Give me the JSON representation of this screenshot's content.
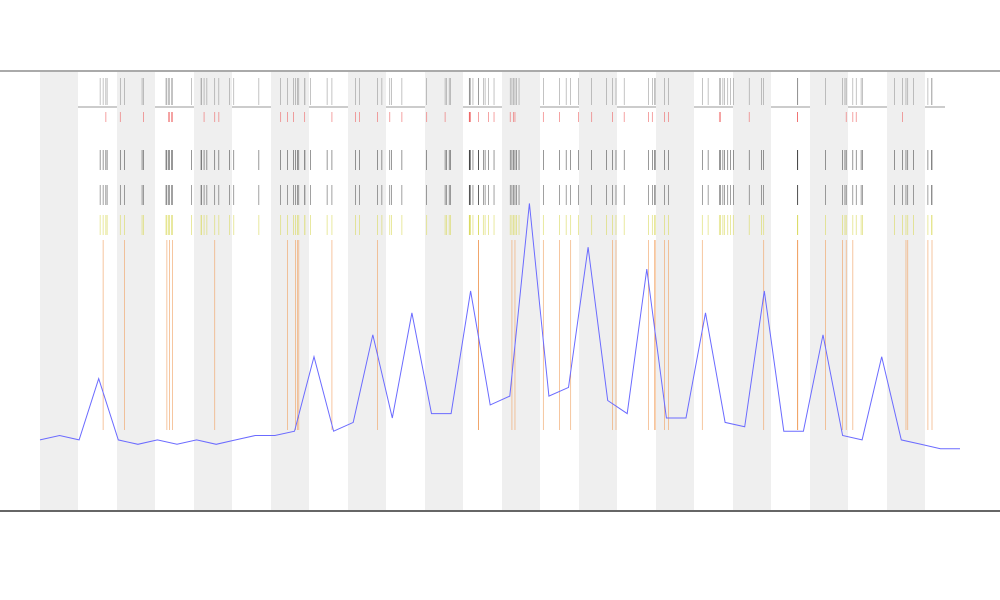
{
  "chart_data": {
    "type": "line",
    "x": [
      0,
      1,
      2,
      3,
      4,
      5,
      6,
      7,
      8,
      9,
      10,
      11,
      12,
      13,
      14,
      15,
      16,
      17,
      18,
      19,
      20,
      21,
      22,
      23,
      24,
      25,
      26,
      27,
      28,
      29,
      30,
      31,
      32,
      33,
      34,
      35,
      36,
      37,
      38,
      39,
      40,
      41,
      42,
      43,
      44,
      45,
      46,
      47
    ],
    "xlim": [
      0,
      47
    ],
    "ylim": [
      0,
      100
    ],
    "series": [
      {
        "color": "#6b6bff",
        "values": [
          16,
          17,
          16,
          30,
          16,
          15,
          16,
          15,
          16,
          15,
          16,
          17,
          17,
          18,
          35,
          18,
          20,
          40,
          21,
          45,
          22,
          22,
          50,
          24,
          26,
          70,
          26,
          28,
          60,
          25,
          22,
          55,
          21,
          21,
          45,
          20,
          19,
          50,
          18,
          18,
          40,
          17,
          16,
          35,
          16,
          15,
          14,
          14
        ]
      }
    ]
  }
}
